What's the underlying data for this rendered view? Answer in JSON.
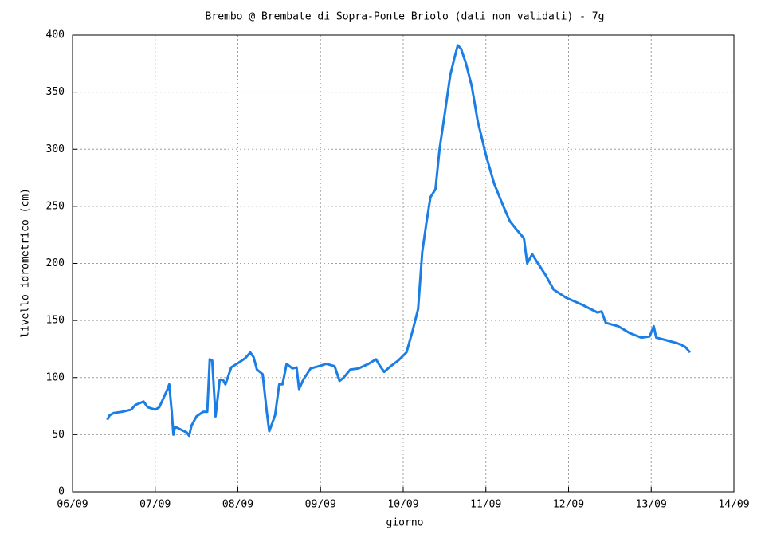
{
  "chart_data": {
    "type": "line",
    "title": "Brembo @ Brembate_di_Sopra-Ponte_Briolo (dati non validati) - 7g",
    "x_label": "giorno",
    "y_label": "livello idrometrico (cm)",
    "x": [
      6.42,
      6.45,
      6.5,
      6.6,
      6.71,
      6.76,
      6.86,
      6.91,
      7.0,
      7.05,
      7.15,
      7.17,
      7.2,
      7.22,
      7.24,
      7.32,
      7.38,
      7.41,
      7.44,
      7.5,
      7.58,
      7.63,
      7.66,
      7.69,
      7.73,
      7.78,
      7.82,
      7.85,
      7.92,
      8.01,
      8.09,
      8.15,
      8.19,
      8.23,
      8.3,
      8.35,
      8.38,
      8.45,
      8.5,
      8.54,
      8.59,
      8.66,
      8.71,
      8.74,
      8.79,
      8.88,
      8.98,
      9.07,
      9.17,
      9.23,
      9.28,
      9.36,
      9.46,
      9.58,
      9.67,
      9.72,
      9.77,
      9.85,
      9.94,
      10.04,
      10.11,
      10.18,
      10.23,
      10.28,
      10.33,
      10.39,
      10.44,
      10.5,
      10.57,
      10.62,
      10.66,
      10.7,
      10.76,
      10.83,
      10.9,
      11.0,
      11.1,
      11.2,
      11.29,
      11.39,
      11.46,
      11.5,
      11.56,
      11.63,
      11.72,
      11.82,
      11.97,
      12.16,
      12.35,
      12.4,
      12.45,
      12.6,
      12.74,
      12.88,
      12.98,
      13.03,
      13.06,
      13.17,
      13.32,
      13.41,
      13.47
    ],
    "series": [
      {
        "name": "livello",
        "color": "#1a7ee6",
        "values": [
          63,
          67,
          69,
          70,
          72,
          76,
          79,
          74,
          72,
          74,
          90,
          94,
          70,
          50,
          57,
          54,
          52,
          49,
          58,
          66,
          70,
          70,
          116,
          115,
          66,
          98,
          98,
          94,
          109,
          113,
          117,
          122,
          118,
          107,
          103,
          70,
          53,
          67,
          94,
          94,
          112,
          108,
          109,
          90,
          98,
          108,
          110,
          112,
          110,
          97,
          100,
          107,
          108,
          112,
          116,
          110,
          105,
          110,
          115,
          122,
          140,
          160,
          210,
          235,
          258,
          265,
          300,
          330,
          365,
          380,
          391,
          388,
          375,
          355,
          325,
          295,
          270,
          252,
          237,
          228,
          222,
          200,
          208,
          200,
          190,
          177,
          170,
          164,
          157,
          158,
          148,
          145,
          139,
          135,
          136,
          145,
          135,
          133,
          130,
          127,
          122
        ]
      }
    ],
    "xlim": [
      6,
      14
    ],
    "xticks": [
      {
        "value": 6,
        "label": "06/09"
      },
      {
        "value": 7,
        "label": "07/09"
      },
      {
        "value": 8,
        "label": "08/09"
      },
      {
        "value": 9,
        "label": "09/09"
      },
      {
        "value": 10,
        "label": "10/09"
      },
      {
        "value": 11,
        "label": "11/09"
      },
      {
        "value": 12,
        "label": "12/09"
      },
      {
        "value": 13,
        "label": "13/09"
      },
      {
        "value": 14,
        "label": "14/09"
      }
    ],
    "ylim": [
      0,
      400
    ],
    "yticks": [
      0,
      50,
      100,
      150,
      200,
      250,
      300,
      350,
      400
    ],
    "grid": true
  }
}
